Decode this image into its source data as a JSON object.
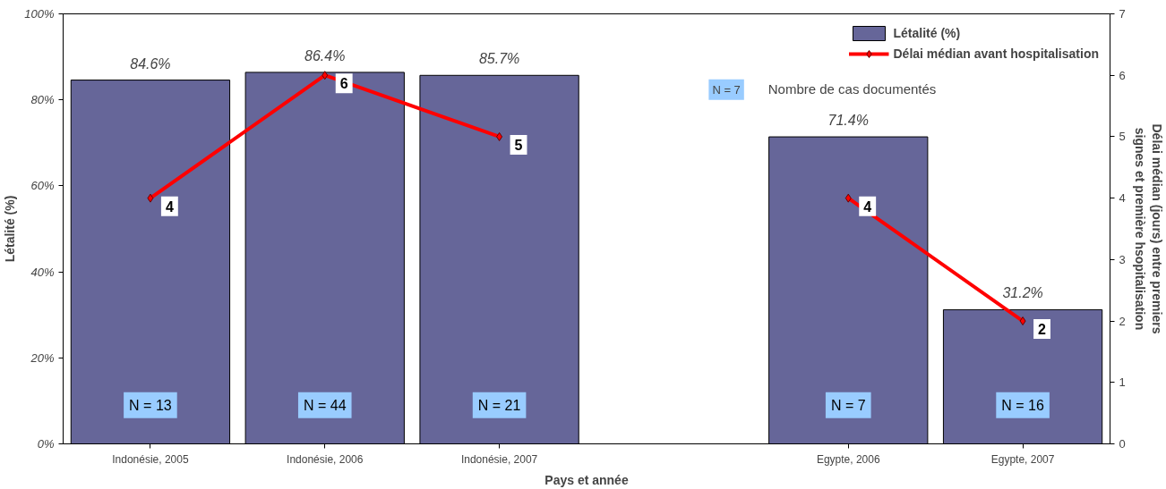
{
  "chart_data": {
    "type": "bar",
    "xlabel": "Pays et année",
    "ylabel": "Létalité (%)",
    "y2label": "Délai médian (jours) entre premiers\nsignes et première hsopitalisation",
    "categories": [
      "Indonésie, 2005",
      "Indonésie, 2006",
      "Indonésie, 2007",
      null,
      "Egypte, 2006",
      "Egypte, 2007"
    ],
    "series": [
      {
        "name": "Létalité (%)",
        "color": "#666699",
        "values": [
          84.6,
          86.4,
          85.7,
          null,
          71.4,
          31.2
        ],
        "value_labels": [
          "84.6%",
          "86.4%",
          "85.7%",
          null,
          "71.4%",
          "31.2%"
        ]
      },
      {
        "name": "Délai médian avant hospitalisation",
        "type": "line",
        "axis": "y2",
        "color": "#ff0000",
        "marker": "diamond",
        "values": [
          4,
          6,
          5,
          null,
          4,
          2
        ],
        "value_labels": [
          "4",
          "6",
          "5",
          null,
          "4",
          "2"
        ]
      }
    ],
    "ylim": [
      0,
      100
    ],
    "yticks": [
      {
        "value": 0,
        "label": "0%"
      },
      {
        "value": 20,
        "label": "20%"
      },
      {
        "value": 40,
        "label": "40%"
      },
      {
        "value": 60,
        "label": "60%"
      },
      {
        "value": 80,
        "label": "80%"
      },
      {
        "value": 100,
        "label": "100%"
      }
    ],
    "y2lim": [
      0,
      7
    ],
    "y2ticks": [
      0,
      1,
      2,
      3,
      4,
      5,
      6,
      7
    ],
    "annotations": [
      "N = 13",
      "N = 44",
      "N = 21",
      "N = 7",
      "N = 16",
      "N = 7",
      "Nombre de cas documentés"
    ],
    "legend": "top right",
    "grid": false
  }
}
